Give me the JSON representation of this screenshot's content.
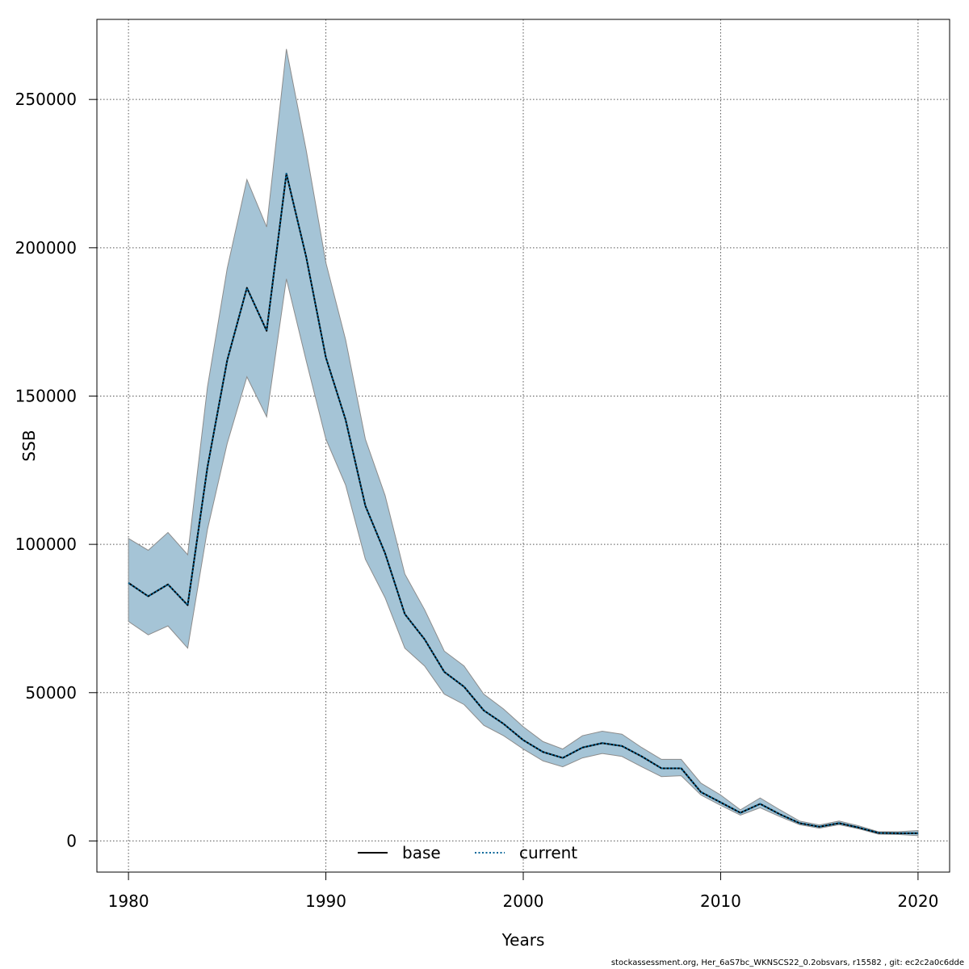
{
  "chart_data": {
    "type": "line",
    "xlabel": "Years",
    "ylabel": "SSB",
    "xlim": [
      1978.4,
      2021.6
    ],
    "ylim": [
      -10500,
      277000
    ],
    "x_ticks": [
      1980,
      1990,
      2000,
      2010,
      2020
    ],
    "y_ticks": [
      0,
      50000,
      100000,
      150000,
      200000,
      250000
    ],
    "x_tick_labels": [
      "1980",
      "1990",
      "2000",
      "2010",
      "2020"
    ],
    "y_tick_labels": [
      "0",
      "50000",
      "100000",
      "150000",
      "200000",
      "250000"
    ],
    "grid": true,
    "legend_position": "bottom-center",
    "x": [
      1980,
      1981,
      1982,
      1983,
      1984,
      1985,
      1986,
      1987,
      1988,
      1989,
      1990,
      1991,
      1992,
      1993,
      1994,
      1995,
      1996,
      1997,
      1998,
      1999,
      2000,
      2001,
      2002,
      2003,
      2004,
      2005,
      2006,
      2007,
      2008,
      2009,
      2010,
      2011,
      2012,
      2013,
      2014,
      2015,
      2016,
      2017,
      2018,
      2019,
      2020
    ],
    "series": [
      {
        "name": "base",
        "line_style": "solid",
        "color": "#000000",
        "values": [
          87000,
          82500,
          86500,
          79500,
          126000,
          162000,
          186500,
          172000,
          225000,
          197000,
          163000,
          142000,
          113000,
          97000,
          76500,
          68000,
          57000,
          52000,
          44000,
          39500,
          34000,
          30000,
          28000,
          31500,
          33000,
          32000,
          28500,
          24500,
          24500,
          16500,
          13000,
          9500,
          12500,
          9000,
          6000,
          4800,
          6000,
          4500,
          2700,
          2600,
          2600
        ]
      },
      {
        "name": "current",
        "line_style": "dotted",
        "color": "#006699",
        "values": [
          87000,
          82500,
          86500,
          79500,
          126000,
          162000,
          186500,
          172000,
          225000,
          197000,
          163000,
          142000,
          113000,
          97000,
          76500,
          68000,
          57000,
          52000,
          44000,
          39500,
          34000,
          30000,
          28000,
          31500,
          33000,
          32000,
          28500,
          24500,
          24500,
          16500,
          13000,
          9500,
          12500,
          9000,
          6000,
          4800,
          6000,
          4500,
          2700,
          2600,
          2600
        ]
      }
    ],
    "confidence_band": {
      "color": "#a5c4d6",
      "border_color": "#8c8c8c",
      "lower": [
        74000,
        69500,
        72500,
        65000,
        105000,
        134000,
        156500,
        143000,
        189500,
        162000,
        135500,
        120000,
        95000,
        82000,
        65000,
        59000,
        49500,
        46000,
        39000,
        35500,
        31000,
        27000,
        25000,
        28000,
        29500,
        28500,
        25000,
        21700,
        22000,
        15500,
        12000,
        8700,
        11200,
        8200,
        5500,
        4300,
        5500,
        4100,
        2300,
        2200,
        1800
      ],
      "upper": [
        102000,
        98000,
        104000,
        96500,
        153000,
        193000,
        223000,
        207000,
        267000,
        233000,
        195000,
        169000,
        135500,
        116500,
        90000,
        78000,
        64000,
        59000,
        49500,
        44500,
        38500,
        33500,
        31000,
        35500,
        37000,
        36000,
        31500,
        27500,
        27500,
        19500,
        15500,
        10500,
        14500,
        10500,
        6700,
        5400,
        6700,
        5100,
        3100,
        3100,
        3500
      ]
    }
  },
  "footer_text": "stockassessment.org, Her_6aS7bc_WKNSCS22_0.2obsvars, r15582 , git: ec2c2a0c6dde"
}
